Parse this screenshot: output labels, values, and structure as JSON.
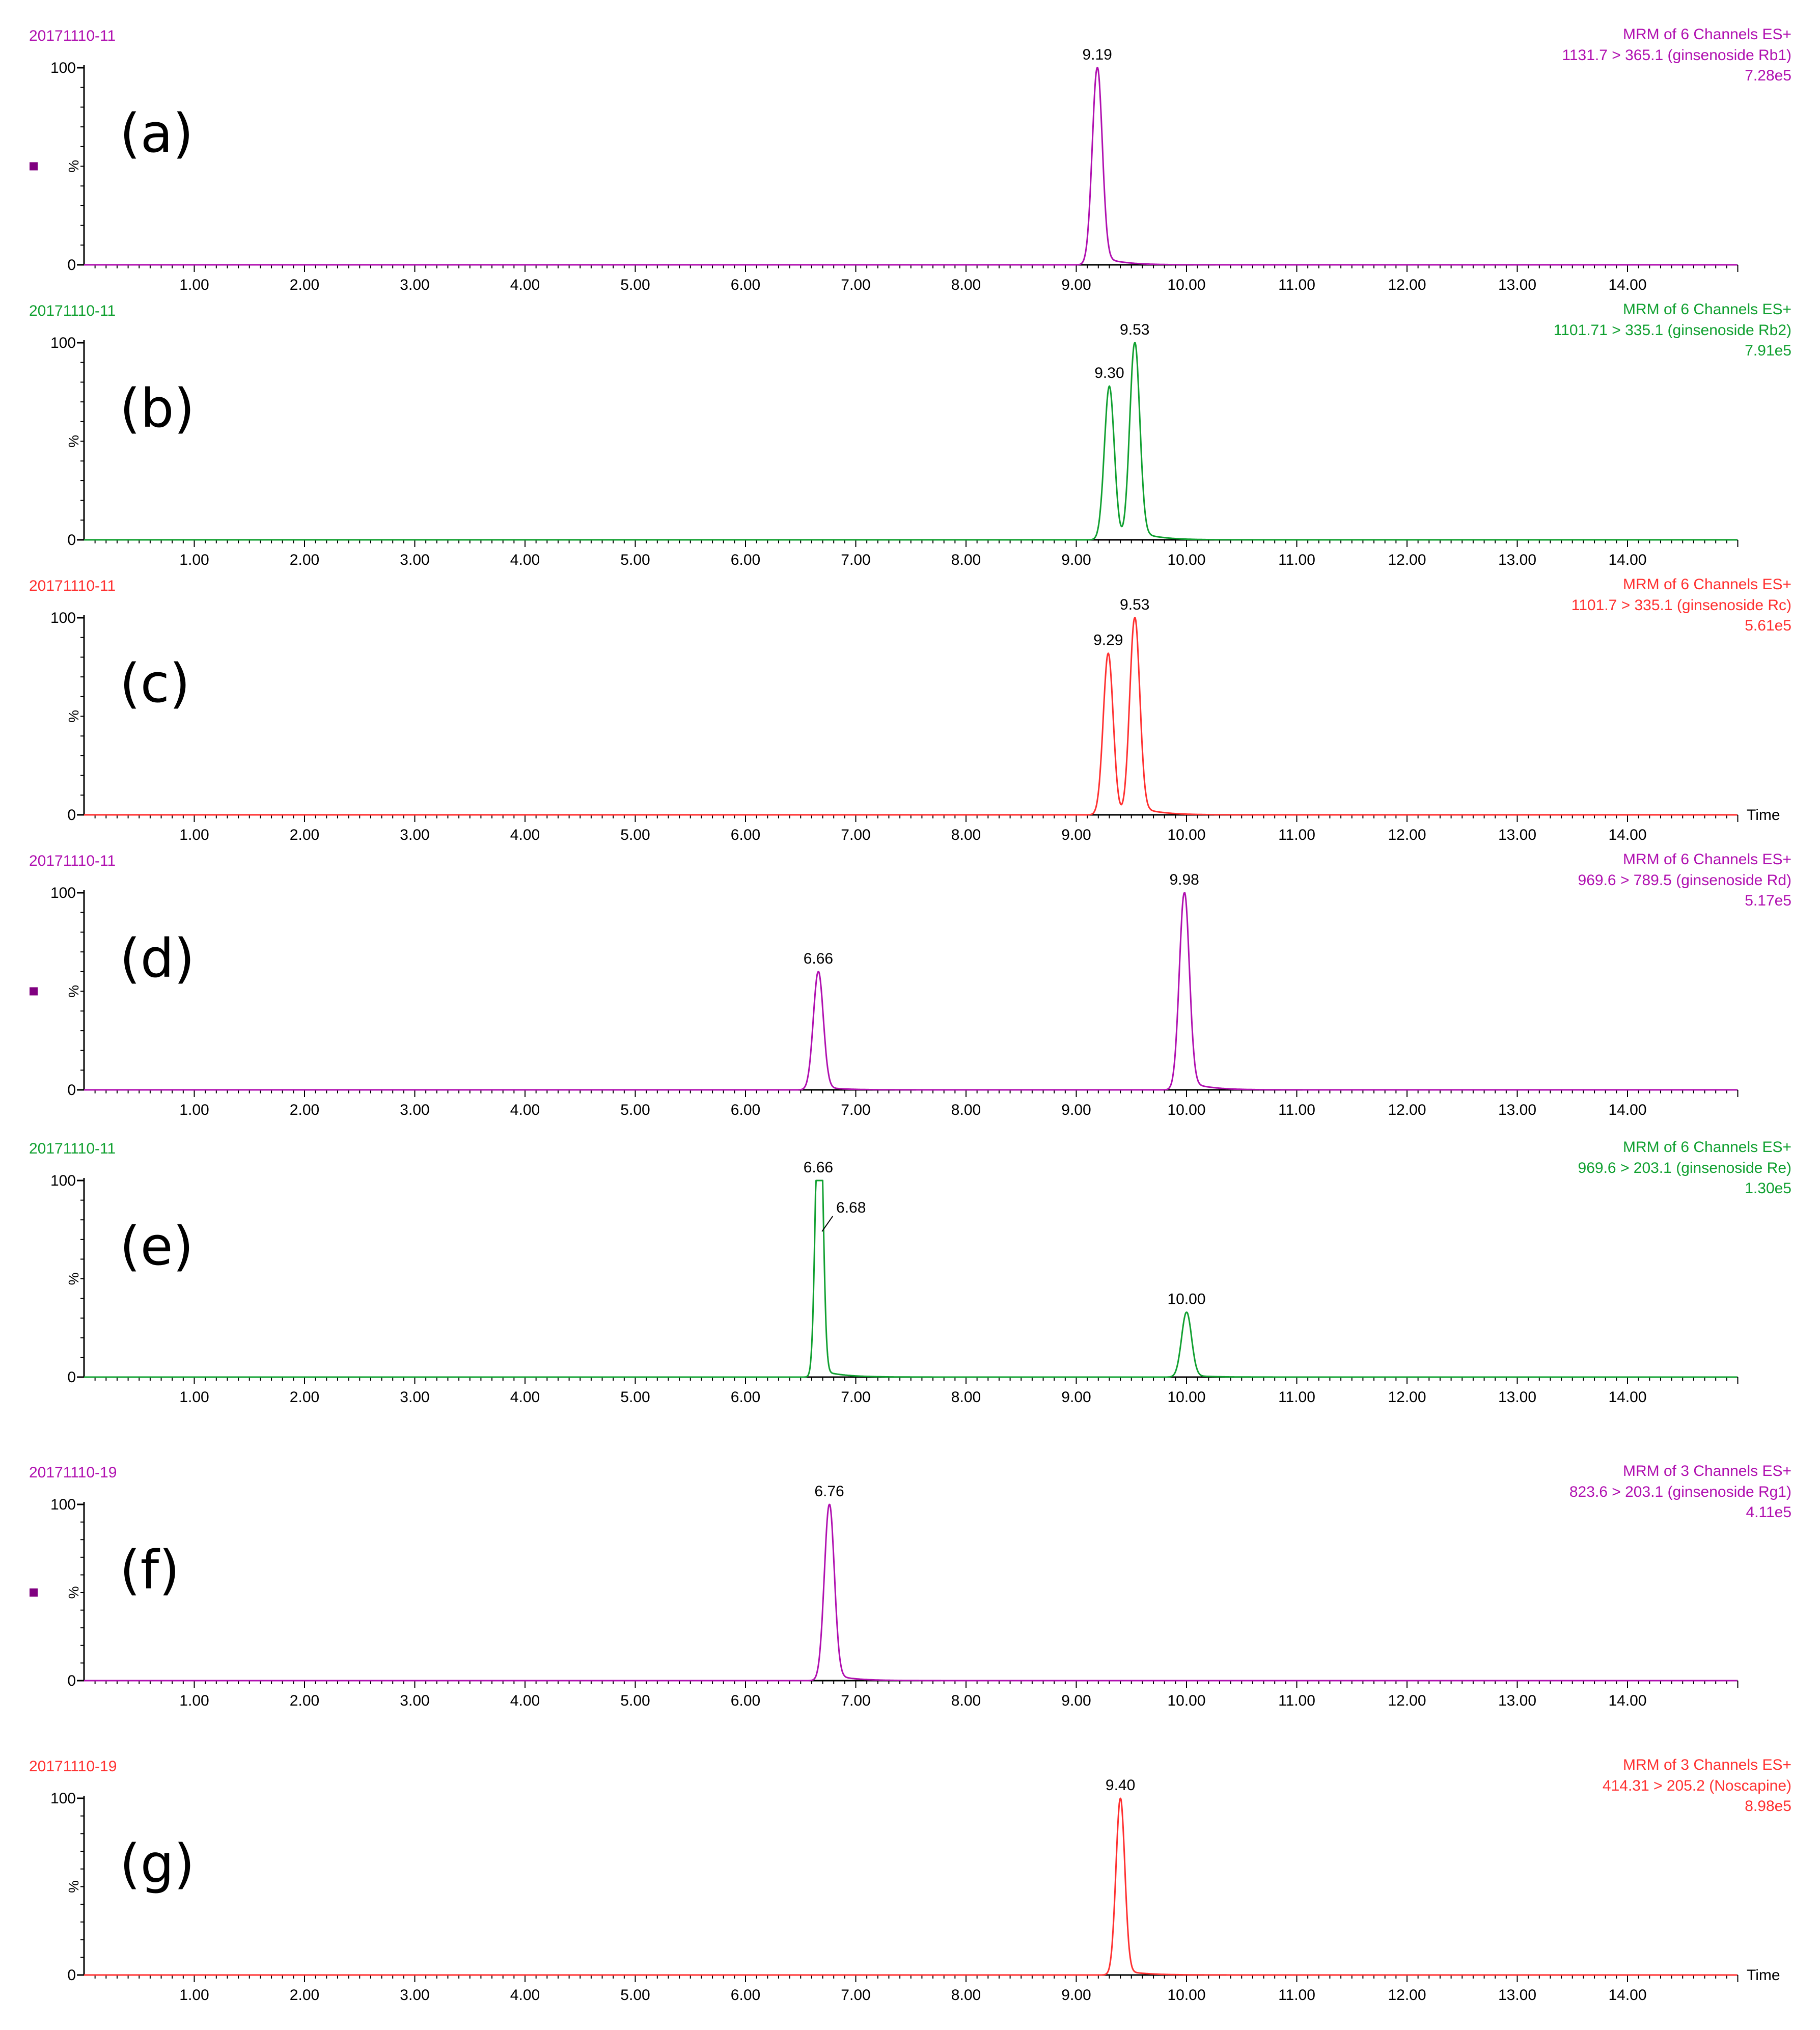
{
  "chart_data": [
    {
      "type": "line",
      "panel_label": "(a)",
      "sample": "20171110-11",
      "header": "MRM of 6 Channels ES+",
      "transition": "1131.7 > 365.1 (ginsenoside Rb1)",
      "intensity": "7.28e5",
      "color": "#b010b0",
      "marker": true,
      "time_label": "",
      "xlim": [
        0,
        15
      ],
      "ylim": [
        0,
        100
      ],
      "ylabel": "%",
      "y_ticks": [
        "100",
        "0"
      ],
      "x_ticks": [
        "1.00",
        "2.00",
        "3.00",
        "4.00",
        "5.00",
        "6.00",
        "7.00",
        "8.00",
        "9.00",
        "10.00",
        "11.00",
        "12.00",
        "13.00",
        "14.00"
      ],
      "peaks": [
        {
          "rt": 9.19,
          "height": 100,
          "width": 0.045,
          "tail": 0.05,
          "label": "9.19"
        }
      ]
    },
    {
      "type": "line",
      "panel_label": "(b)",
      "sample": "20171110-11",
      "header": "MRM of 6 Channels ES+",
      "transition": "1101.71 > 335.1 (ginsenoside Rb2)",
      "intensity": "7.91e5",
      "color": "#10a030",
      "marker": false,
      "time_label": "",
      "xlim": [
        0,
        15
      ],
      "ylim": [
        0,
        100
      ],
      "ylabel": "%",
      "y_ticks": [
        "100",
        "0"
      ],
      "x_ticks": [
        "1.00",
        "2.00",
        "3.00",
        "4.00",
        "5.00",
        "6.00",
        "7.00",
        "8.00",
        "9.00",
        "10.00",
        "11.00",
        "12.00",
        "13.00",
        "14.00"
      ],
      "peaks": [
        {
          "rt": 9.3,
          "height": 78,
          "width": 0.045,
          "tail": 0.0,
          "label": "9.30"
        },
        {
          "rt": 9.53,
          "height": 100,
          "width": 0.045,
          "tail": 0.05,
          "label": "9.53"
        }
      ]
    },
    {
      "type": "line",
      "panel_label": "(c)",
      "sample": "20171110-11",
      "header": "MRM of 6 Channels ES+",
      "transition": "1101.7 > 335.1 (ginsenoside Rc)",
      "intensity": "5.61e5",
      "color": "#ff3030",
      "marker": false,
      "time_label": "Time",
      "xlim": [
        0,
        15
      ],
      "ylim": [
        0,
        100
      ],
      "ylabel": "%",
      "y_ticks": [
        "100",
        "0"
      ],
      "x_ticks": [
        "1.00",
        "2.00",
        "3.00",
        "4.00",
        "5.00",
        "6.00",
        "7.00",
        "8.00",
        "9.00",
        "10.00",
        "11.00",
        "12.00",
        "13.00",
        "14.00"
      ],
      "peaks": [
        {
          "rt": 9.29,
          "height": 82,
          "width": 0.045,
          "tail": 0.0,
          "label": "9.29"
        },
        {
          "rt": 9.53,
          "height": 100,
          "width": 0.045,
          "tail": 0.05,
          "label": "9.53"
        }
      ]
    },
    {
      "type": "line",
      "panel_label": "(d)",
      "sample": "20171110-11",
      "header": "MRM of 6 Channels ES+",
      "transition": "969.6 > 789.5 (ginsenoside Rd)",
      "intensity": "5.17e5",
      "color": "#b010b0",
      "marker": true,
      "time_label": "",
      "xlim": [
        0,
        15
      ],
      "ylim": [
        0,
        100
      ],
      "ylabel": "%",
      "y_ticks": [
        "100",
        "0"
      ],
      "x_ticks": [
        "1.00",
        "2.00",
        "3.00",
        "4.00",
        "5.00",
        "6.00",
        "7.00",
        "8.00",
        "9.00",
        "10.00",
        "11.00",
        "12.00",
        "13.00",
        "14.00"
      ],
      "peaks": [
        {
          "rt": 6.66,
          "height": 60,
          "width": 0.045,
          "tail": 0.03,
          "label": "6.66"
        },
        {
          "rt": 9.98,
          "height": 100,
          "width": 0.045,
          "tail": 0.05,
          "label": "9.98"
        }
      ]
    },
    {
      "type": "line",
      "panel_label": "(e)",
      "sample": "20171110-11",
      "header": "MRM of 6 Channels ES+",
      "transition": "969.6 > 203.1 (ginsenoside Re)",
      "intensity": "1.30e5",
      "color": "#10a030",
      "marker": false,
      "time_label": "",
      "xlim": [
        0,
        15
      ],
      "ylim": [
        0,
        100
      ],
      "ylabel": "%",
      "y_ticks": [
        "100",
        "0"
      ],
      "x_ticks": [
        "1.00",
        "2.00",
        "3.00",
        "4.00",
        "5.00",
        "6.00",
        "7.00",
        "8.00",
        "9.00",
        "10.00",
        "11.00",
        "12.00",
        "13.00",
        "14.00"
      ],
      "peaks": [
        {
          "rt": 6.66,
          "height": 100,
          "width": 0.03,
          "tail": 0.04,
          "label": "6.66"
        },
        {
          "rt": 6.68,
          "height": 72,
          "width": 0.03,
          "tail": 0.0,
          "label": "6.68"
        },
        {
          "rt": 10.0,
          "height": 33,
          "width": 0.045,
          "tail": 0.03,
          "label": "10.00"
        }
      ]
    },
    {
      "type": "line",
      "panel_label": "(f)",
      "sample": "20171110-19",
      "header": "MRM of 3 Channels ES+",
      "transition": "823.6 > 203.1 (ginsenoside Rg1)",
      "intensity": "4.11e5",
      "color": "#b010b0",
      "marker": true,
      "time_label": "",
      "xlim": [
        0,
        15
      ],
      "ylim": [
        0,
        100
      ],
      "ylabel": "%",
      "y_ticks": [
        "100",
        "0"
      ],
      "x_ticks": [
        "1.00",
        "2.00",
        "3.00",
        "4.00",
        "5.00",
        "6.00",
        "7.00",
        "8.00",
        "9.00",
        "10.00",
        "11.00",
        "12.00",
        "13.00",
        "14.00"
      ],
      "peaks": [
        {
          "rt": 6.76,
          "height": 100,
          "width": 0.045,
          "tail": 0.04,
          "label": "6.76"
        }
      ]
    },
    {
      "type": "line",
      "panel_label": "(g)",
      "sample": "20171110-19",
      "header": "MRM of 3 Channels ES+",
      "transition": "414.31 > 205.2 (Noscapine)",
      "intensity": "8.98e5",
      "color": "#ff3030",
      "marker": false,
      "time_label": "Time",
      "xlim": [
        0,
        15
      ],
      "ylim": [
        0,
        100
      ],
      "ylabel": "%",
      "y_ticks": [
        "100",
        "0"
      ],
      "x_ticks": [
        "1.00",
        "2.00",
        "3.00",
        "4.00",
        "5.00",
        "6.00",
        "7.00",
        "8.00",
        "9.00",
        "10.00",
        "11.00",
        "12.00",
        "13.00",
        "14.00"
      ],
      "peaks": [
        {
          "rt": 9.4,
          "height": 100,
          "width": 0.04,
          "tail": 0.03,
          "label": "9.40"
        }
      ]
    }
  ]
}
